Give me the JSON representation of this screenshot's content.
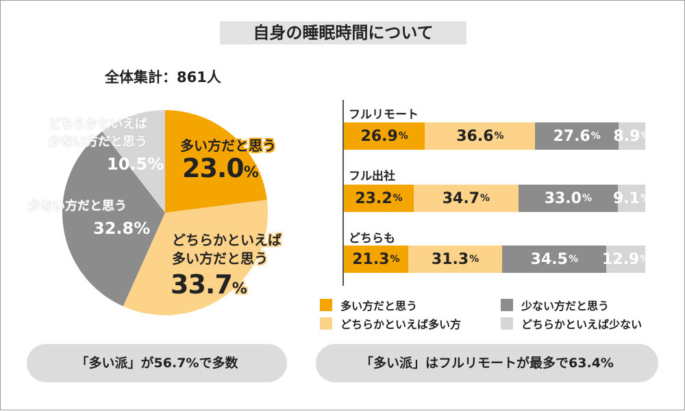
{
  "title": "自身の睡眠時間について",
  "colors": {
    "orange": "#f5a500",
    "peach": "#fdd38a",
    "dark_gray": "#8c8c8c",
    "light_gray": "#d6d6d6"
  },
  "chart_data": [
    {
      "type": "pie",
      "title": "全体集計：861人",
      "slices": [
        {
          "name": "多い方だと思う",
          "value": 23.0,
          "label_pct": "23.0",
          "color": "#f5a500"
        },
        {
          "name": "どちらかといえば多い方だと思う",
          "label_line1": "どちらかといえば",
          "label_line2": "多い方だと思う",
          "value": 33.7,
          "label_pct": "33.7",
          "color": "#fdd38a"
        },
        {
          "name": "少ない方だと思う",
          "value": 32.8,
          "label_pct": "32.8%",
          "color": "#8c8c8c"
        },
        {
          "name": "どちらかといえば少ない方だと思う",
          "label_line1": "どちらかといえば",
          "label_line2": "少ない方だと思う",
          "value": 10.5,
          "label_pct": "10.5%",
          "color": "#d6d6d6"
        }
      ],
      "pct_unit": "%"
    },
    {
      "type": "bar",
      "orientation": "horizontal",
      "stacked": true,
      "categories": [
        "フルリモート",
        "フル出社",
        "どちらも"
      ],
      "series": [
        {
          "name": "多い方だと思う",
          "values": [
            26.9,
            23.2,
            21.3
          ],
          "labels": [
            "26.9",
            "23.2",
            "21.3"
          ],
          "color": "#f5a500"
        },
        {
          "name": "どちらかといえば多い方",
          "values": [
            36.6,
            34.7,
            31.3
          ],
          "labels": [
            "36.6",
            "34.7",
            "31.3"
          ],
          "color": "#fdd38a"
        },
        {
          "name": "少ない方だと思う",
          "values": [
            27.6,
            33.0,
            34.5
          ],
          "labels": [
            "27.6",
            "33.0",
            "34.5"
          ],
          "color": "#8c8c8c"
        },
        {
          "name": "どちらかといえば少ない",
          "values": [
            8.9,
            9.1,
            12.9
          ],
          "labels": [
            "8.9",
            "9.1",
            "12.9"
          ],
          "color": "#d6d6d6"
        }
      ],
      "pct_unit": "%",
      "legend_position": "bottom"
    }
  ],
  "summary_left": "「多い派」が56.7%で多数",
  "summary_right": "「多い派」はフルリモートが最多で63.4%"
}
